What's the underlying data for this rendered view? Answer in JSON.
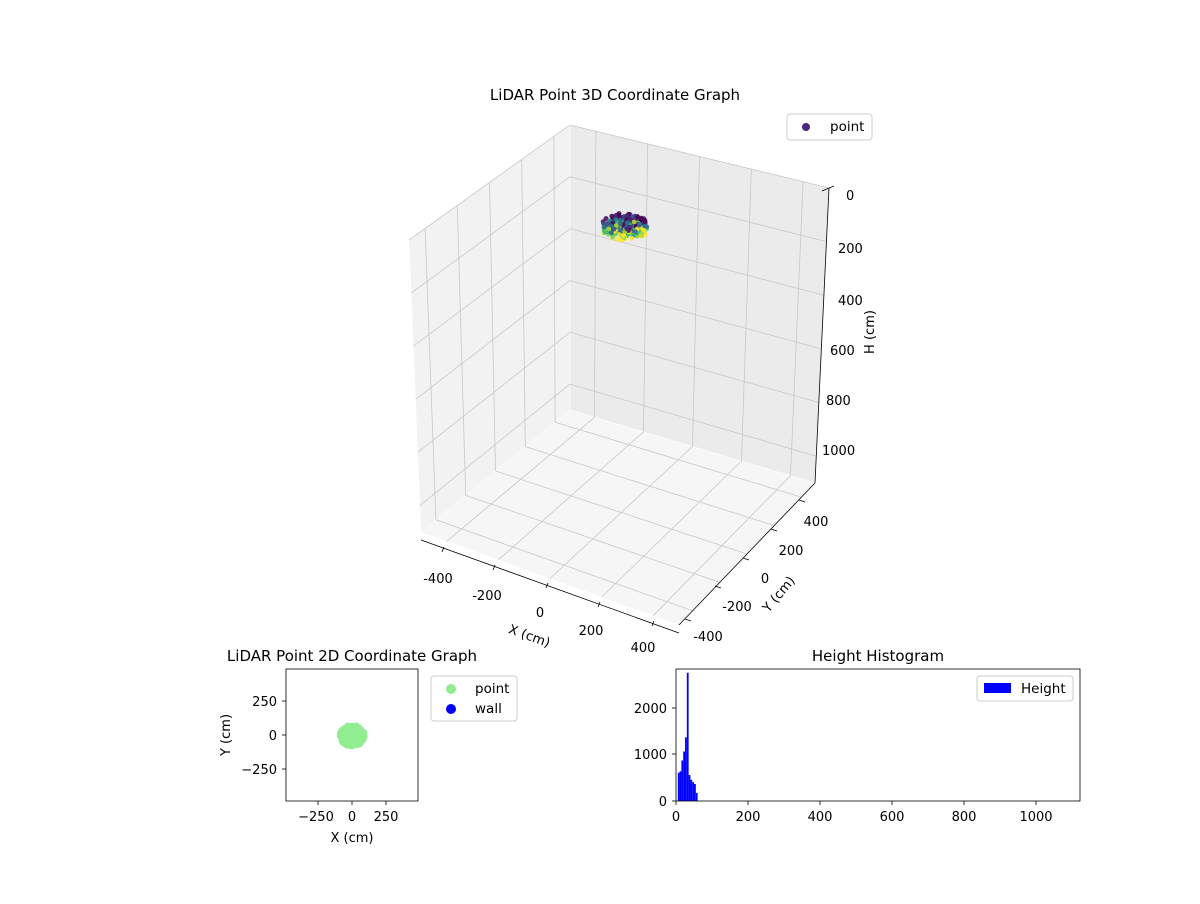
{
  "chart_data": [
    {
      "type": "scatter",
      "projection": "3d",
      "title": "LiDAR Point 3D Coordinate Graph",
      "xlabel": "X (cm)",
      "ylabel": "Y (cm)",
      "zlabel": "H (cm)",
      "xlim": [
        -500,
        500
      ],
      "ylim": [
        -500,
        500
      ],
      "zlim": [
        1100,
        0
      ],
      "xticks": [
        "-400",
        "-200",
        "0",
        "200",
        "400"
      ],
      "yticks": [
        "-400",
        "-200",
        "0",
        "200",
        "400"
      ],
      "zticks": [
        "0",
        "200",
        "400",
        "600",
        "800",
        "1000"
      ],
      "zaxis_inverted": true,
      "colormap": "viridis",
      "legend": [
        "point"
      ],
      "legend_color": "#482878",
      "legend_position": "upper right",
      "grid": true,
      "cluster": {
        "x_range": [
          -80,
          80
        ],
        "y_range": [
          -80,
          80
        ],
        "h_range": [
          0,
          80
        ]
      }
    },
    {
      "type": "scatter",
      "title": "LiDAR Point 2D Coordinate Graph",
      "xlabel": "X (cm)",
      "ylabel": "Y (cm)",
      "xlim": [
        -480,
        480
      ],
      "ylim": [
        -480,
        480
      ],
      "xticks": [
        "−250",
        "0",
        "250"
      ],
      "yticks": [
        "−250",
        "0",
        "250"
      ],
      "series": [
        {
          "name": "point",
          "color": "#90ee90",
          "cluster": {
            "x_range": [
              -90,
              90
            ],
            "y_range": [
              -80,
              70
            ]
          }
        },
        {
          "name": "wall",
          "color": "#0000ff",
          "points": []
        }
      ],
      "legend_position": "outside right"
    },
    {
      "type": "bar",
      "subtype": "histogram",
      "title": "Height Histogram",
      "xlim": [
        0,
        1120
      ],
      "ylim": [
        0,
        2800
      ],
      "xticks": [
        "0",
        "200",
        "400",
        "600",
        "800",
        "1000"
      ],
      "yticks": [
        "0",
        "1000",
        "2000"
      ],
      "series": [
        {
          "name": "Height",
          "color": "#0000ff",
          "bin_starts": [
            5,
            10,
            15,
            20,
            25,
            30,
            35,
            40,
            45,
            50,
            55,
            60,
            65,
            70
          ],
          "bin_width": 5,
          "values": [
            600,
            630,
            860,
            1050,
            1350,
            2720,
            550,
            450,
            400,
            360,
            170,
            0,
            0,
            0
          ]
        }
      ],
      "legend_position": "upper right"
    }
  ]
}
